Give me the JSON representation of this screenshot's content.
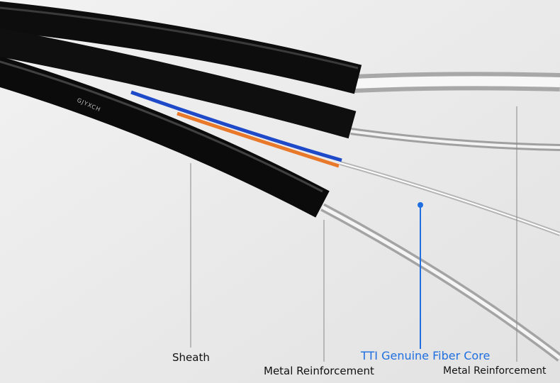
{
  "cable_print": "GJYXCH",
  "labels": {
    "sheath": "Sheath",
    "metal_reinforcement_left": "Metal Reinforcement",
    "fiber_core": "TTI Genuine Fiber Core",
    "metal_reinforcement_right": "Metal Reinforcement"
  }
}
